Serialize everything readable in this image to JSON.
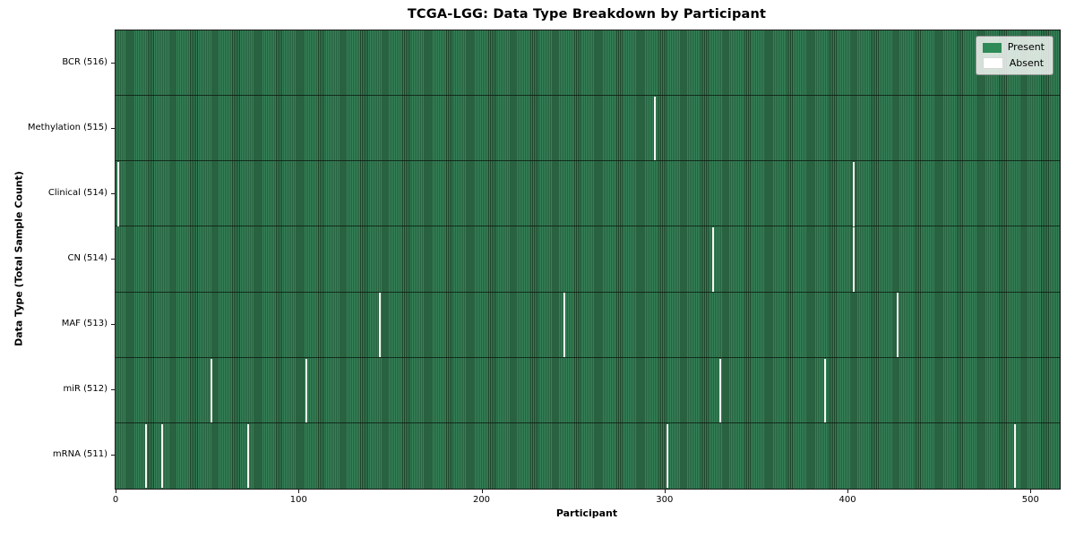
{
  "title": "TCGA-LGG: Data Type Breakdown by Participant",
  "xlabel": "Participant",
  "ylabel": "Data Type (Total Sample Count)",
  "legend": {
    "present_label": "Present",
    "absent_label": "Absent"
  },
  "colors": {
    "present": "#2e8b57",
    "absent": "#ffffff",
    "stripe_light": "#348258",
    "stripe_dark": "#1e4229",
    "row_separator": "#13291b",
    "legend_bg": "rgba(255,255,255,0.8)"
  },
  "chart_data": {
    "type": "heatmap",
    "title": "TCGA-LGG: Data Type Breakdown by Participant",
    "xlabel": "Participant",
    "ylabel": "Data Type (Total Sample Count)",
    "legend_entries": [
      "Present",
      "Absent"
    ],
    "legend_position": "upper right",
    "n_participants": 516,
    "x_range": [
      0,
      516
    ],
    "x_ticks": [
      0,
      100,
      200,
      300,
      400,
      500
    ],
    "cell_values": "1 = present (green), 0 = absent (white)",
    "rows": [
      {
        "label": "BCR (516)",
        "data_type": "BCR",
        "total_samples": 516,
        "absent_participants": []
      },
      {
        "label": "Methylation (515)",
        "data_type": "Methylation",
        "total_samples": 515,
        "absent_participants": [
          294
        ]
      },
      {
        "label": "Clinical (514)",
        "data_type": "Clinical",
        "total_samples": 514,
        "absent_participants": [
          1,
          403
        ]
      },
      {
        "label": "CN (514)",
        "data_type": "CN",
        "total_samples": 514,
        "absent_participants": [
          326,
          403
        ]
      },
      {
        "label": "MAF (513)",
        "data_type": "MAF",
        "total_samples": 513,
        "absent_participants": [
          144,
          245,
          427
        ]
      },
      {
        "label": "miR (512)",
        "data_type": "miR",
        "total_samples": 512,
        "absent_participants": [
          52,
          104,
          330,
          387
        ]
      },
      {
        "label": "mRNA (511)",
        "data_type": "mRNA",
        "total_samples": 511,
        "absent_participants": [
          16,
          25,
          72,
          301,
          491
        ]
      }
    ]
  }
}
